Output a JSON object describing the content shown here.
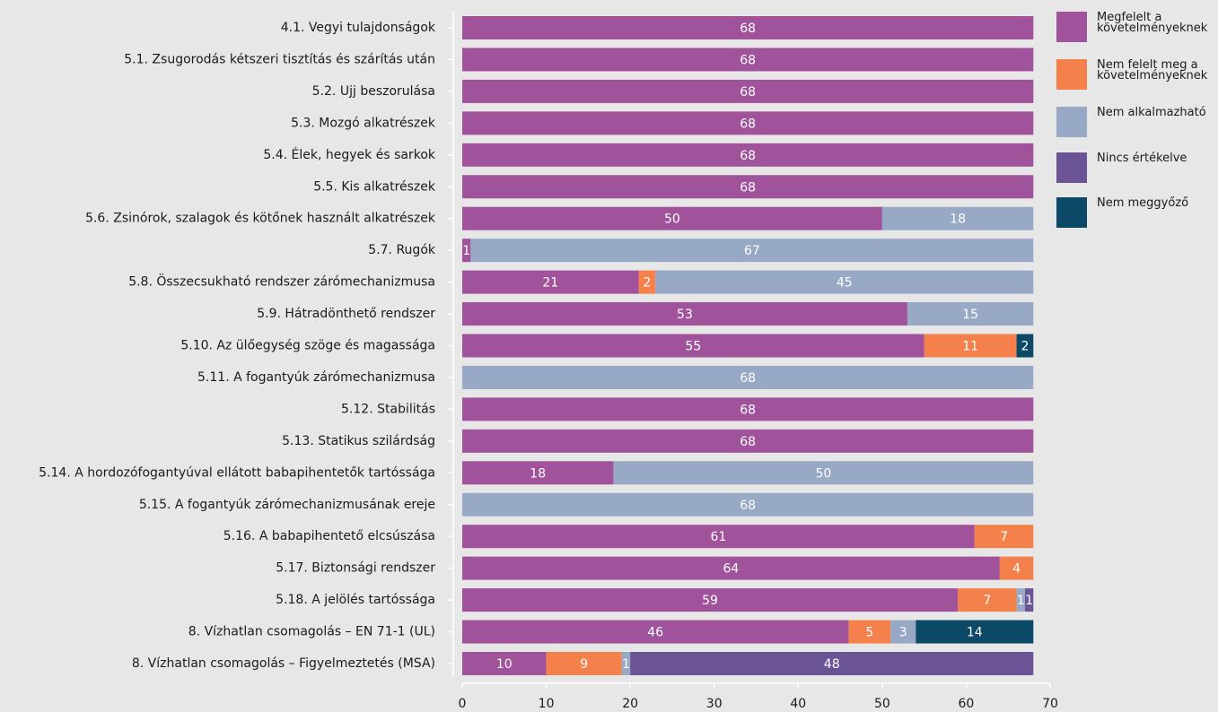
{
  "chart_data": {
    "type": "stacked-bar-horizontal",
    "categories": [
      "4.1. Vegyi tulajdonságok",
      "5.1. Zsugorodás kétszeri tisztítás és szárítás után",
      "5.2. Ujj beszorulása",
      "5.3. Mozgó alkatrészek",
      "5.4. Élek, hegyek és sarkok",
      "5.5. Kis alkatrészek",
      "5.6. Zsinórok, szalagok és kötőnek használt alkatrészek",
      "5.7. Rugók",
      "5.8. Összecsukható rendszer zárómechanizmusa",
      "5.9. Hátradönthető rendszer",
      "5.10. Az ülőegység szöge és magassága",
      "5.11. A fogantyúk zárómechanizmusa",
      "5.12. Stabilitás",
      "5.13. Statikus szilárdság",
      "5.14. A hordozófogantyúval ellátott babapihentetők tartóssága",
      "5.15. A fogantyúk zárómechanizmusának ereje",
      "5.16. A babapihentető elcsúszása",
      "5.17. Biztonsági rendszer",
      "5.18. A jelölés tartóssága",
      "8. Vízhatlan csomagolás – EN 71-1 (UL)",
      "8. Vízhatlan csomagolás – Figyelmeztetés (MSA)"
    ],
    "series": [
      {
        "name": "Megfelelt a követelményeknek",
        "color": "#a0529a",
        "values": [
          68,
          68,
          68,
          68,
          68,
          68,
          50,
          1,
          21,
          53,
          55,
          null,
          68,
          68,
          18,
          null,
          61,
          64,
          59,
          46,
          10
        ]
      },
      {
        "name": "Nem felelt meg a követelményeknek",
        "color": "#f4804b",
        "values": [
          null,
          null,
          null,
          null,
          null,
          null,
          null,
          null,
          2,
          null,
          11,
          null,
          null,
          null,
          null,
          null,
          7,
          4,
          7,
          5,
          9
        ]
      },
      {
        "name": "Nem alkalmazható",
        "color": "#98a9c5",
        "values": [
          null,
          null,
          null,
          null,
          null,
          null,
          18,
          67,
          45,
          15,
          null,
          68,
          null,
          null,
          50,
          68,
          null,
          null,
          1,
          3,
          1
        ]
      },
      {
        "name": "Nincs értékelve",
        "color": "#6b5495",
        "values": [
          null,
          null,
          null,
          null,
          null,
          null,
          null,
          null,
          null,
          null,
          null,
          null,
          null,
          null,
          null,
          null,
          null,
          null,
          1,
          null,
          48
        ]
      },
      {
        "name": "Nem meggyőző",
        "color": "#0b4966",
        "values": [
          null,
          null,
          null,
          null,
          null,
          null,
          null,
          null,
          null,
          null,
          2,
          null,
          null,
          null,
          null,
          null,
          null,
          null,
          null,
          14,
          null
        ]
      }
    ],
    "xlim": [
      0,
      70
    ],
    "xticks": [
      0,
      10,
      20,
      30,
      40,
      50,
      60,
      70
    ]
  }
}
